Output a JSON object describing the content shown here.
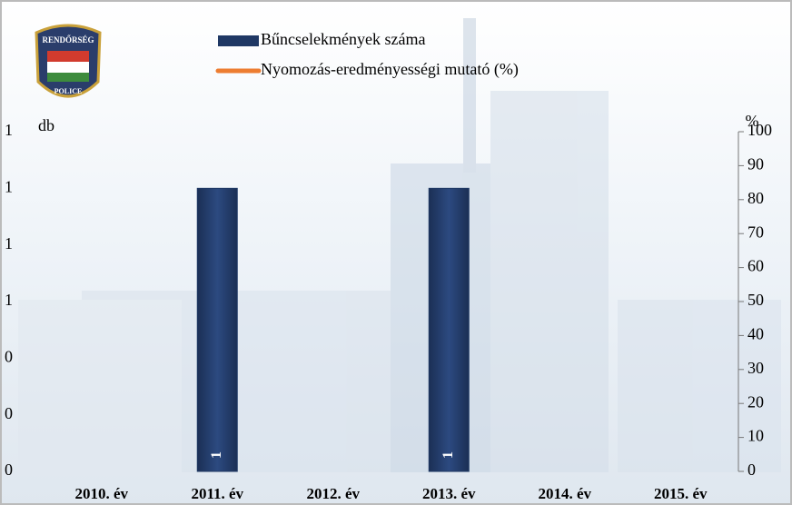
{
  "logo": {
    "top": "RENDŐRSÉG",
    "bottom": "POLICE"
  },
  "chart_data": {
    "type": "bar",
    "categories": [
      "2010. év",
      "2011. év",
      "2012. év",
      "2013. év",
      "2014. év",
      "2015. év"
    ],
    "series": [
      {
        "name": "Bűncselekmények száma",
        "color": "#1f3864",
        "values": [
          null,
          1,
          null,
          1,
          null,
          null
        ]
      },
      {
        "name": "Nyomozás-eredményességi mutató (%)",
        "color": "#ed7d31",
        "axis": "y2",
        "type": "line",
        "values": [
          null,
          null,
          null,
          null,
          null,
          null
        ]
      }
    ],
    "ylabel": "db",
    "y2label": "%",
    "ylim": [
      0,
      1.2
    ],
    "yticks": [
      0,
      {
        "value": 0.2,
        "label": "0"
      },
      {
        "value": 0.4,
        "label": "0"
      },
      {
        "value": 0.6,
        "label": "1"
      },
      {
        "value": 0.8,
        "label": "1"
      },
      1,
      {
        "value": 1.2,
        "label": "1"
      }
    ],
    "y2lim": [
      0,
      100
    ],
    "y2ticks": [
      0,
      10,
      20,
      30,
      40,
      50,
      60,
      70,
      80,
      90,
      100
    ],
    "grid": false
  }
}
